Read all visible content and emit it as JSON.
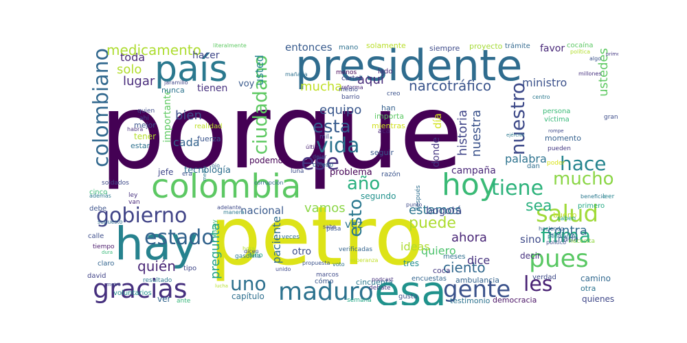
{
  "words": [
    {
      "text": "porque",
      "color": "#440154"
    },
    {
      "text": "petro",
      "color": "#dde318"
    },
    {
      "text": "presidente",
      "color": "#2f6c8e"
    },
    {
      "text": "colombia",
      "color": "#5cc863"
    },
    {
      "text": "país",
      "color": "#2a788e"
    },
    {
      "text": "hay",
      "color": "#26828e"
    },
    {
      "text": "esa",
      "color": "#20928c"
    },
    {
      "text": "hoy",
      "color": "#3aba76"
    },
    {
      "text": "colombiano",
      "color": "#31688e"
    },
    {
      "text": "gracias",
      "color": "#46307e"
    },
    {
      "text": "maduro",
      "color": "#2c728e"
    },
    {
      "text": "pues",
      "color": "#5ac864"
    },
    {
      "text": "gobierno",
      "color": "#414487"
    },
    {
      "text": "salud",
      "color": "#a0da39"
    },
    {
      "text": "ciudadano",
      "color": "#5ec962"
    },
    {
      "text": "vida",
      "color": "#2c738e"
    },
    {
      "text": "ese",
      "color": "#46337f"
    },
    {
      "text": "estado",
      "color": "#33638d"
    },
    {
      "text": "gente",
      "color": "#3b528b"
    },
    {
      "text": "les",
      "color": "#482173"
    },
    {
      "text": "uno",
      "color": "#2d708e"
    },
    {
      "text": "esta",
      "color": "#375b8d"
    },
    {
      "text": "nuestro",
      "color": "#3e4a89"
    },
    {
      "text": "hace",
      "color": "#25848e"
    },
    {
      "text": "tiene",
      "color": "#2eb37c"
    },
    {
      "text": "mucho",
      "color": "#8bd646"
    },
    {
      "text": "firma",
      "color": "#26ad81"
    },
    {
      "text": "año",
      "color": "#2ab07f"
    },
    {
      "text": "esto",
      "color": "#2a778e"
    },
    {
      "text": "puede",
      "color": "#addc30"
    },
    {
      "text": "quién",
      "color": "#482576"
    },
    {
      "text": "sea",
      "color": "#2ab07f"
    },
    {
      "text": "medicamento",
      "color": "#addc30"
    },
    {
      "text": "usted",
      "color": "#24868e"
    },
    {
      "text": "ustedes",
      "color": "#5ec962"
    },
    {
      "text": "narcotráfico",
      "color": "#3a548c"
    },
    {
      "text": "mucha",
      "color": "#c0df25"
    },
    {
      "text": "aquí",
      "color": "#472c7a"
    },
    {
      "text": "equipo",
      "color": "#39568c"
    },
    {
      "text": "historia",
      "color": "#404588"
    },
    {
      "text": "nuestra",
      "color": "#3b528b"
    },
    {
      "text": "estamos",
      "color": "#2b748e"
    },
    {
      "text": "vamos",
      "color": "#8bd646"
    },
    {
      "text": "contra",
      "color": "#2f6c8e"
    },
    {
      "text": "ahora",
      "color": "#482576"
    },
    {
      "text": "ciento",
      "color": "#31688e"
    },
    {
      "text": "dice",
      "color": "#46327e"
    },
    {
      "text": "pregunta",
      "color": "#1fa188"
    },
    {
      "text": "paciente",
      "color": "#2e6e8e"
    },
    {
      "text": "bien",
      "color": "#3d4d8a"
    },
    {
      "text": "cada",
      "color": "#33638d"
    },
    {
      "text": "solo",
      "color": "#b2dd2d"
    },
    {
      "text": "toda",
      "color": "#482878"
    },
    {
      "text": "lugar",
      "color": "#472a7a"
    },
    {
      "text": "hacer",
      "color": "#3f4788"
    },
    {
      "text": "entonces",
      "color": "#375a8c"
    },
    {
      "text": "ministro",
      "color": "#3b518b"
    },
    {
      "text": "favor",
      "color": "#482878"
    },
    {
      "text": "palabra",
      "color": "#2c728e"
    },
    {
      "text": "campaña",
      "color": "#482576"
    },
    {
      "text": "donde",
      "color": "#453781"
    },
    {
      "text": "día",
      "color": "#d2e21b"
    },
    {
      "text": "importante",
      "color": "#5ec962"
    },
    {
      "text": "tienen",
      "color": "#46307e"
    },
    {
      "text": "voy",
      "color": "#38598c"
    },
    {
      "text": "sino",
      "color": "#3e4a89"
    },
    {
      "text": "quiero",
      "color": "#4cc26c"
    },
    {
      "text": "ideas",
      "color": "#addc30"
    },
    {
      "text": "otro",
      "color": "#3d4e8a"
    },
    {
      "text": "tres",
      "color": "#228c8d"
    },
    {
      "text": "vez",
      "color": "#2b748e"
    },
    {
      "text": "nacional",
      "color": "#38598c"
    },
    {
      "text": "bogotá",
      "color": "#3e4989"
    },
    {
      "text": "problema",
      "color": "#440154"
    },
    {
      "text": "tecnología",
      "color": "#2e6e8e"
    },
    {
      "text": "jefe",
      "color": "#3f4788"
    },
    {
      "text": "podemos",
      "color": "#440154"
    },
    {
      "text": "segundo",
      "color": "#21918c"
    },
    {
      "text": "capítulo",
      "color": "#2e6f8e"
    },
    {
      "text": "ver",
      "color": "#32658e"
    },
    {
      "text": "camino",
      "color": "#31688e"
    },
    {
      "text": "otra",
      "color": "#2c728e"
    },
    {
      "text": "quienes",
      "color": "#3f4788"
    },
    {
      "text": "nada",
      "color": "#3a548c"
    },
    {
      "text": "decir",
      "color": "#46307e"
    },
    {
      "text": "coca",
      "color": "#443983"
    },
    {
      "text": "cómo",
      "color": "#39568c"
    },
    {
      "text": "cincuenta",
      "color": "#2a788e"
    },
    {
      "text": "ambulancia",
      "color": "#33638d"
    },
    {
      "text": "verdad",
      "color": "#3e4a89"
    },
    {
      "text": "democracia",
      "color": "#471063"
    },
    {
      "text": "testimonio",
      "color": "#2c728e"
    },
    {
      "text": "mejor",
      "color": "#3a548c"
    },
    {
      "text": "nunca",
      "color": "#2c738e"
    },
    {
      "text": "tener",
      "color": "#b5de2b"
    },
    {
      "text": "estar",
      "color": "#2d708e"
    },
    {
      "text": "realidad",
      "color": "#bddf26"
    },
    {
      "text": "fuerza",
      "color": "#3a548c"
    },
    {
      "text": "siempre",
      "color": "#3e4a89"
    },
    {
      "text": "proyecto",
      "color": "#a5db36"
    },
    {
      "text": "solamente",
      "color": "#b8de29"
    },
    {
      "text": "mano",
      "color": "#2d708e"
    },
    {
      "text": "trámite",
      "color": "#31688e"
    },
    {
      "text": "cocaína",
      "color": "#5cc863"
    },
    {
      "text": "política",
      "color": "#b2dd2d"
    },
    {
      "text": "persona",
      "color": "#3aba76"
    },
    {
      "text": "víctima",
      "color": "#37b878"
    },
    {
      "text": "momento",
      "color": "#34608d"
    },
    {
      "text": "pueden",
      "color": "#443983"
    },
    {
      "text": "poder",
      "color": "#d8e219"
    },
    {
      "text": "primero",
      "color": "#23a983"
    },
    {
      "text": "beneficio",
      "color": "#2a788e"
    },
    {
      "text": "leer",
      "color": "#25848e"
    },
    {
      "text": "bueno",
      "color": "#c2df23"
    },
    {
      "text": "dan",
      "color": "#2e6e8e"
    },
    {
      "text": "saben",
      "color": "#1f9e89"
    },
    {
      "text": "haciendo",
      "color": "#34608d"
    },
    {
      "text": "pendiente",
      "color": "#2a768e"
    },
    {
      "text": "político",
      "color": "#3d4d8a"
    },
    {
      "text": "necesita",
      "color": "#90d743"
    },
    {
      "text": "meses",
      "color": "#2e6f8e"
    },
    {
      "text": "encuestas",
      "color": "#32658e"
    },
    {
      "text": "podcast",
      "color": "#46327e"
    },
    {
      "text": "gusta",
      "color": "#3b528b"
    },
    {
      "text": "debate",
      "color": "#46327e"
    },
    {
      "text": "semana",
      "color": "#22a785"
    },
    {
      "text": "importa",
      "color": "#5cc863"
    },
    {
      "text": "mientras",
      "color": "#d0e11c"
    },
    {
      "text": "acá",
      "color": "#482475"
    },
    {
      "text": "seguir",
      "color": "#39568c"
    },
    {
      "text": "creo",
      "color": "#3b528b"
    },
    {
      "text": "han",
      "color": "#35608d"
    },
    {
      "text": "cartel",
      "color": "#414487"
    },
    {
      "text": "reforma",
      "color": "#482576"
    },
    {
      "text": "barrio",
      "color": "#3e4a89"
    },
    {
      "text": "medio",
      "color": "#3e4989"
    },
    {
      "text": "lado",
      "color": "#482173"
    },
    {
      "text": "menos",
      "color": "#440154"
    },
    {
      "text": "mañana",
      "color": "#2d708e"
    },
    {
      "text": "literalmente",
      "color": "#5ec962"
    },
    {
      "text": "jaramillo",
      "color": "#404588"
    },
    {
      "text": "quien",
      "color": "#3e4989"
    },
    {
      "text": "ahí",
      "color": "#3f4788"
    },
    {
      "text": "habrá",
      "color": "#46307e"
    },
    {
      "text": "era",
      "color": "#3b528b"
    },
    {
      "text": "soldados",
      "color": "#3e4a89"
    },
    {
      "text": "cinco",
      "color": "#3aba76"
    },
    {
      "text": "además",
      "color": "#2a788e"
    },
    {
      "text": "ley",
      "color": "#46307e"
    },
    {
      "text": "van",
      "color": "#482878"
    },
    {
      "text": "debe",
      "color": "#3b528b"
    },
    {
      "text": "supuesto",
      "color": "#2f6c8e"
    },
    {
      "text": "calle",
      "color": "#3d4d8a"
    },
    {
      "text": "tiempo",
      "color": "#481769"
    },
    {
      "text": "claro",
      "color": "#32648e"
    },
    {
      "text": "david",
      "color": "#414487"
    },
    {
      "text": "resultado",
      "color": "#2a788e"
    },
    {
      "text": "voluntarios",
      "color": "#21918c"
    },
    {
      "text": "tipo",
      "color": "#3f4788"
    },
    {
      "text": "ante",
      "color": "#35b779"
    },
    {
      "text": "estoy",
      "color": "#3aba76"
    },
    {
      "text": "dicen",
      "color": "#3e4a89"
    },
    {
      "text": "niño",
      "color": "#22a785"
    },
    {
      "text": "veces",
      "color": "#2e6e8e"
    },
    {
      "text": "propuesta",
      "color": "#3b528b"
    },
    {
      "text": "marcos",
      "color": "#3e4a89"
    },
    {
      "text": "verificadas",
      "color": "#33638d"
    },
    {
      "text": "unido",
      "color": "#3e4989"
    },
    {
      "text": "pasa",
      "color": "#39568c"
    },
    {
      "text": "sabe",
      "color": "#3f4788"
    },
    {
      "text": "manera",
      "color": "#2a788e"
    },
    {
      "text": "adelante",
      "color": "#3e4a89"
    },
    {
      "text": "último",
      "color": "#482173"
    },
    {
      "text": "dejar",
      "color": "#3b528b"
    },
    {
      "text": "oviedo",
      "color": "#2f6c8e"
    },
    {
      "text": "luna",
      "color": "#3d4d8a"
    },
    {
      "text": "corrupción",
      "color": "#31688e"
    },
    {
      "text": "mil",
      "color": "#3e4989"
    },
    {
      "text": "razón",
      "color": "#3a548c"
    },
    {
      "text": "después",
      "color": "#2e6e8e"
    },
    {
      "text": "punto",
      "color": "#3e4a89"
    },
    {
      "text": "voto",
      "color": "#2c728e"
    },
    {
      "text": "esperanza",
      "color": "#c0df25"
    },
    {
      "text": "gasolina",
      "color": "#2a788e"
    },
    {
      "text": "hora",
      "color": "#b2dd2d"
    },
    {
      "text": "algo",
      "color": "#3b528b"
    },
    {
      "text": "primer",
      "color": "#443983"
    },
    {
      "text": "millones",
      "color": "#46307e"
    },
    {
      "text": "centro",
      "color": "#2a788e"
    },
    {
      "text": "gran",
      "color": "#3d4d8a"
    },
    {
      "text": "rompe",
      "color": "#3e4989"
    },
    {
      "text": "media",
      "color": "#2a788e"
    },
    {
      "text": "ojo",
      "color": "#31688e"
    },
    {
      "text": "metro",
      "color": "#3e4989"
    },
    {
      "text": "dura",
      "color": "#37b878"
    },
    {
      "text": "lucha",
      "color": "#b5de2b"
    },
    {
      "text": "ejército",
      "color": "#2a788e"
    }
  ]
}
